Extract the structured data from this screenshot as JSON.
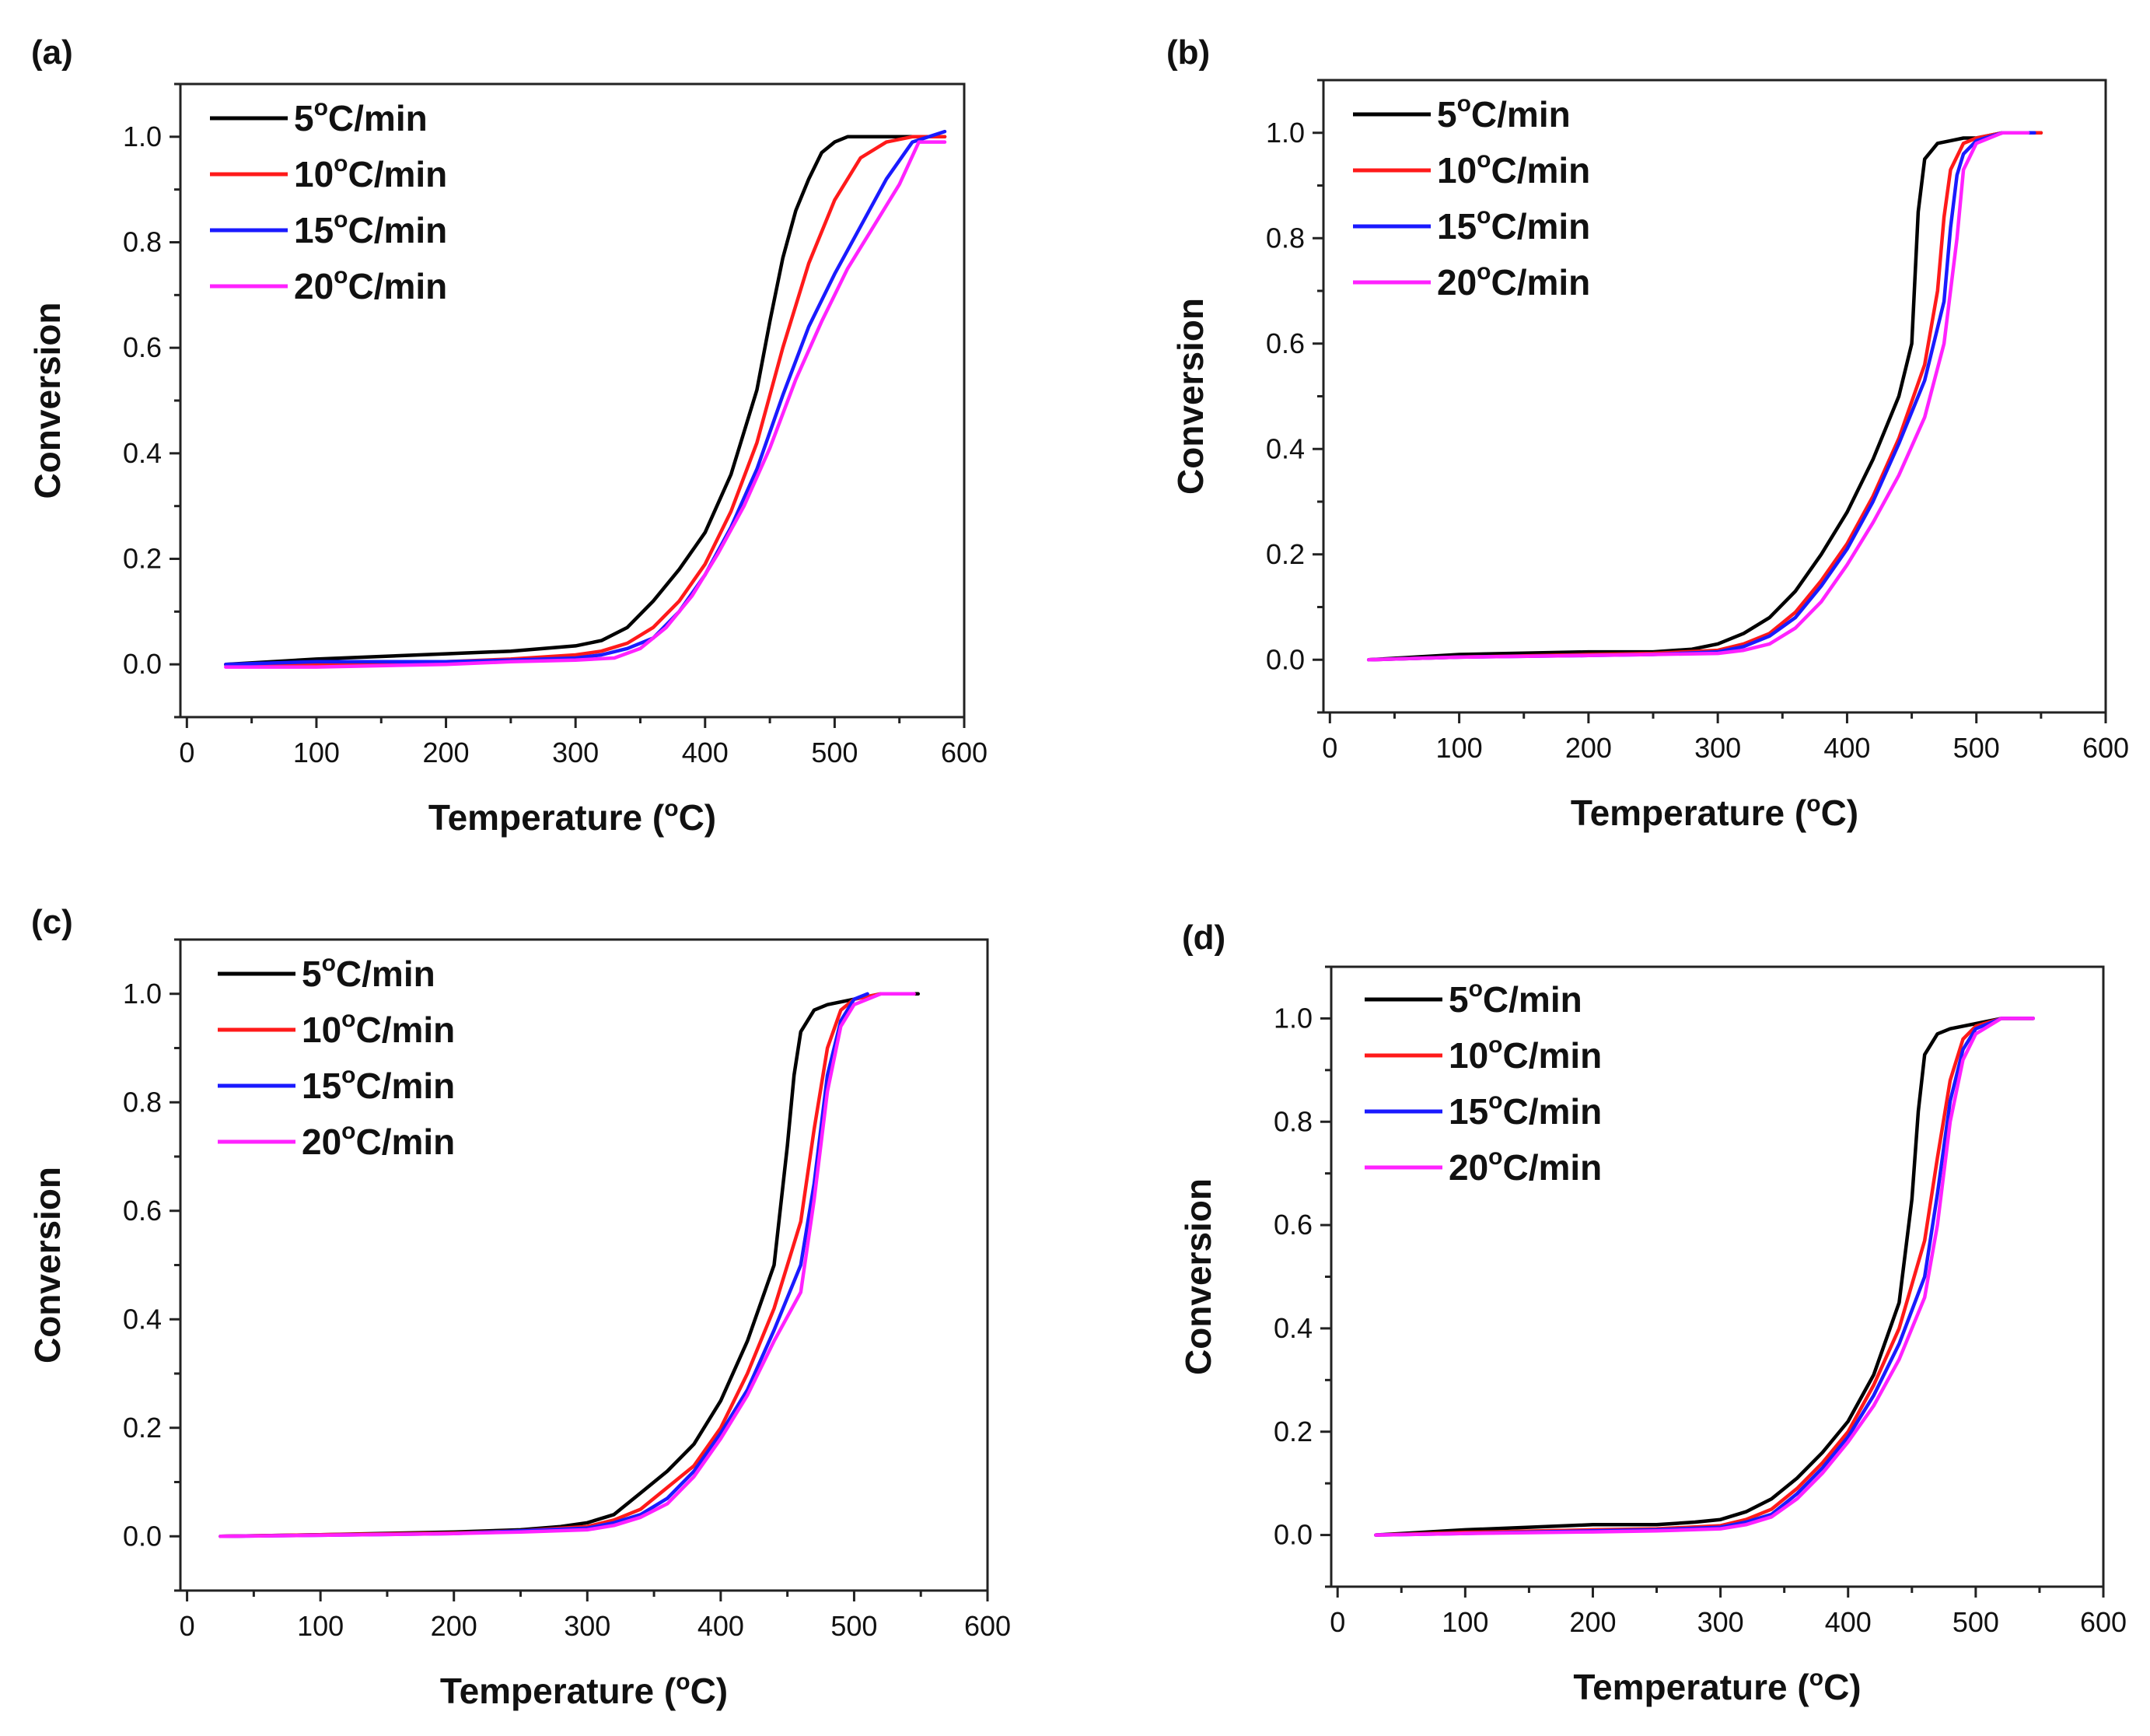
{
  "series_colors": [
    "#000000",
    "#ff1a1a",
    "#1a1aff",
    "#ff22ff"
  ],
  "chart_data": [
    {
      "type": "line",
      "panel_label": "(a)",
      "xlabel": "Temperature (",
      "xlabel_unit": "C)",
      "ylabel": "Conversion",
      "xlim": [
        -5,
        600
      ],
      "ylim": [
        -0.1,
        1.1
      ],
      "xticks": [
        "0",
        "100",
        "200",
        "300",
        "400",
        "500",
        "600"
      ],
      "yticks": [
        "0.0",
        "0.2",
        "0.4",
        "0.6",
        "0.8",
        "1.0"
      ],
      "legend": [
        "5",
        "10",
        "15",
        "20"
      ],
      "legend_unit": "C/min",
      "legend_sup": "o",
      "series": [
        {
          "name": "5°C/min",
          "x": [
            30,
            100,
            200,
            250,
            300,
            320,
            340,
            360,
            380,
            400,
            420,
            440,
            450,
            460,
            470,
            480,
            490,
            500,
            510,
            520,
            540,
            560,
            585
          ],
          "y": [
            0,
            0.01,
            0.02,
            0.025,
            0.035,
            0.045,
            0.07,
            0.12,
            0.18,
            0.25,
            0.36,
            0.52,
            0.65,
            0.77,
            0.86,
            0.92,
            0.97,
            0.99,
            1,
            1,
            1,
            1,
            1
          ]
        },
        {
          "name": "10°C/min",
          "x": [
            30,
            100,
            200,
            250,
            300,
            320,
            340,
            360,
            380,
            400,
            420,
            440,
            460,
            480,
            500,
            520,
            540,
            560,
            585
          ],
          "y": [
            0,
            0,
            0.005,
            0.01,
            0.018,
            0.025,
            0.04,
            0.07,
            0.12,
            0.19,
            0.29,
            0.42,
            0.6,
            0.76,
            0.88,
            0.96,
            0.99,
            1,
            1
          ]
        },
        {
          "name": "15°C/min",
          "x": [
            30,
            100,
            200,
            250,
            300,
            320,
            340,
            360,
            380,
            400,
            420,
            440,
            460,
            480,
            500,
            520,
            540,
            560,
            585
          ],
          "y": [
            0,
            0.005,
            0.005,
            0.008,
            0.012,
            0.018,
            0.03,
            0.05,
            0.1,
            0.17,
            0.26,
            0.37,
            0.51,
            0.64,
            0.74,
            0.83,
            0.92,
            0.99,
            1.01
          ]
        },
        {
          "name": "20°C/min",
          "x": [
            30,
            100,
            200,
            250,
            300,
            330,
            350,
            370,
            390,
            410,
            430,
            450,
            470,
            490,
            510,
            530,
            550,
            565,
            585
          ],
          "y": [
            -0.005,
            -0.005,
            0,
            0.005,
            0.008,
            0.012,
            0.03,
            0.07,
            0.13,
            0.21,
            0.3,
            0.41,
            0.54,
            0.65,
            0.75,
            0.83,
            0.91,
            0.99,
            0.99
          ]
        }
      ]
    },
    {
      "type": "line",
      "panel_label": "(b)",
      "xlabel": "Temperature (",
      "xlabel_unit": "C)",
      "ylabel": "Conversion",
      "xlim": [
        -5,
        600
      ],
      "ylim": [
        -0.1,
        1.1
      ],
      "xticks": [
        "0",
        "100",
        "200",
        "300",
        "400",
        "500",
        "600"
      ],
      "yticks": [
        "0.0",
        "0.2",
        "0.4",
        "0.6",
        "0.8",
        "1.0"
      ],
      "legend": [
        "5",
        "10",
        "15",
        "20"
      ],
      "legend_unit": "C/min",
      "legend_sup": "o",
      "series": [
        {
          "name": "5°C/min",
          "x": [
            30,
            100,
            200,
            250,
            280,
            300,
            320,
            340,
            360,
            380,
            400,
            420,
            440,
            450,
            455,
            460,
            470,
            480,
            490,
            500,
            520,
            550
          ],
          "y": [
            0,
            0.01,
            0.015,
            0.015,
            0.02,
            0.03,
            0.05,
            0.08,
            0.13,
            0.2,
            0.28,
            0.38,
            0.5,
            0.6,
            0.85,
            0.95,
            0.98,
            0.985,
            0.99,
            0.99,
            1,
            1
          ]
        },
        {
          "name": "10°C/min",
          "x": [
            30,
            100,
            200,
            250,
            300,
            320,
            340,
            360,
            380,
            400,
            420,
            440,
            460,
            470,
            475,
            480,
            490,
            500,
            520,
            550
          ],
          "y": [
            0,
            0.005,
            0.01,
            0.012,
            0.018,
            0.03,
            0.05,
            0.09,
            0.15,
            0.22,
            0.31,
            0.42,
            0.56,
            0.7,
            0.84,
            0.93,
            0.98,
            0.99,
            1,
            1
          ]
        },
        {
          "name": "15°C/min",
          "x": [
            30,
            100,
            200,
            250,
            300,
            320,
            340,
            360,
            380,
            400,
            420,
            440,
            460,
            475,
            480,
            485,
            490,
            500,
            520,
            545
          ],
          "y": [
            0,
            0.005,
            0.008,
            0.01,
            0.015,
            0.025,
            0.045,
            0.08,
            0.14,
            0.21,
            0.3,
            0.41,
            0.53,
            0.68,
            0.82,
            0.92,
            0.96,
            0.985,
            1,
            1
          ]
        },
        {
          "name": "20°C/min",
          "x": [
            30,
            100,
            200,
            250,
            300,
            320,
            340,
            360,
            380,
            400,
            420,
            440,
            460,
            475,
            485,
            490,
            500,
            520,
            540
          ],
          "y": [
            0,
            0.005,
            0.008,
            0.01,
            0.012,
            0.018,
            0.03,
            0.06,
            0.11,
            0.18,
            0.26,
            0.35,
            0.46,
            0.6,
            0.8,
            0.93,
            0.98,
            1,
            1
          ]
        }
      ]
    },
    {
      "type": "line",
      "panel_label": "(c)",
      "xlabel": "Temperature (",
      "xlabel_unit": "C)",
      "ylabel": "Conversion",
      "xlim": [
        -5,
        600
      ],
      "ylim": [
        -0.1,
        1.1
      ],
      "xticks": [
        "0",
        "100",
        "200",
        "300",
        "400",
        "500",
        "600"
      ],
      "yticks": [
        "0.0",
        "0.2",
        "0.4",
        "0.6",
        "0.8",
        "1.0"
      ],
      "legend": [
        "5",
        "10",
        "15",
        "20"
      ],
      "legend_unit": "C/min",
      "legend_sup": "o",
      "series": [
        {
          "name": "5°C/min",
          "x": [
            25,
            100,
            200,
            250,
            280,
            300,
            320,
            340,
            360,
            380,
            400,
            420,
            440,
            450,
            455,
            460,
            470,
            480,
            500,
            520,
            548
          ],
          "y": [
            0,
            0.003,
            0.008,
            0.012,
            0.018,
            0.025,
            0.04,
            0.08,
            0.12,
            0.17,
            0.25,
            0.36,
            0.5,
            0.72,
            0.85,
            0.93,
            0.97,
            0.98,
            0.99,
            1,
            1
          ]
        },
        {
          "name": "10°C/min",
          "x": [
            25,
            100,
            200,
            250,
            300,
            320,
            340,
            360,
            380,
            400,
            420,
            440,
            460,
            470,
            480,
            490,
            500,
            520,
            545
          ],
          "y": [
            0,
            0.003,
            0.006,
            0.01,
            0.018,
            0.03,
            0.05,
            0.09,
            0.13,
            0.2,
            0.3,
            0.42,
            0.58,
            0.75,
            0.9,
            0.97,
            0.99,
            1,
            1
          ]
        },
        {
          "name": "15°C/min",
          "x": [
            25,
            100,
            200,
            250,
            300,
            320,
            340,
            360,
            380,
            400,
            420,
            440,
            460,
            470,
            480,
            490,
            500,
            510
          ],
          "y": [
            0,
            0.002,
            0.005,
            0.01,
            0.015,
            0.025,
            0.04,
            0.07,
            0.12,
            0.19,
            0.27,
            0.38,
            0.5,
            0.65,
            0.85,
            0.95,
            0.99,
            1
          ]
        },
        {
          "name": "20°C/min",
          "x": [
            25,
            100,
            200,
            250,
            300,
            320,
            340,
            360,
            380,
            400,
            420,
            440,
            460,
            470,
            480,
            490,
            500,
            520,
            545
          ],
          "y": [
            0,
            0.002,
            0.005,
            0.008,
            0.012,
            0.02,
            0.035,
            0.06,
            0.11,
            0.18,
            0.26,
            0.36,
            0.45,
            0.62,
            0.82,
            0.94,
            0.98,
            1,
            1
          ]
        }
      ]
    },
    {
      "type": "line",
      "panel_label": "(d)",
      "xlabel": "Temperature (",
      "xlabel_unit": "C)",
      "ylabel": "Conversion",
      "xlim": [
        -5,
        600
      ],
      "ylim": [
        -0.1,
        1.1
      ],
      "xticks": [
        "0",
        "100",
        "200",
        "300",
        "400",
        "500",
        "600"
      ],
      "yticks": [
        "0.0",
        "0.2",
        "0.4",
        "0.6",
        "0.8",
        "1.0"
      ],
      "legend": [
        "5",
        "10",
        "15",
        "20"
      ],
      "legend_unit": "C/min",
      "legend_sup": "o",
      "series": [
        {
          "name": "5°C/min",
          "x": [
            30,
            100,
            150,
            200,
            250,
            280,
            300,
            320,
            340,
            360,
            380,
            400,
            420,
            440,
            450,
            455,
            460,
            470,
            480,
            500,
            520,
            545
          ],
          "y": [
            0,
            0.01,
            0.015,
            0.02,
            0.02,
            0.025,
            0.03,
            0.045,
            0.07,
            0.11,
            0.16,
            0.22,
            0.31,
            0.45,
            0.65,
            0.82,
            0.93,
            0.97,
            0.98,
            0.99,
            1,
            1
          ]
        },
        {
          "name": "10°C/min",
          "x": [
            30,
            100,
            200,
            250,
            300,
            320,
            340,
            360,
            380,
            400,
            420,
            440,
            460,
            470,
            480,
            490,
            500,
            520,
            545
          ],
          "y": [
            0,
            0.005,
            0.01,
            0.012,
            0.018,
            0.03,
            0.05,
            0.09,
            0.14,
            0.2,
            0.29,
            0.4,
            0.57,
            0.73,
            0.88,
            0.96,
            0.985,
            1,
            1
          ]
        },
        {
          "name": "15°C/min",
          "x": [
            30,
            100,
            200,
            250,
            300,
            320,
            340,
            360,
            380,
            400,
            420,
            440,
            460,
            470,
            480,
            490,
            500,
            520,
            545
          ],
          "y": [
            0,
            0.003,
            0.008,
            0.01,
            0.015,
            0.025,
            0.04,
            0.08,
            0.13,
            0.19,
            0.27,
            0.37,
            0.5,
            0.66,
            0.84,
            0.94,
            0.98,
            1,
            1
          ]
        },
        {
          "name": "20°C/min",
          "x": [
            30,
            100,
            200,
            250,
            300,
            320,
            340,
            360,
            380,
            400,
            420,
            440,
            460,
            470,
            480,
            490,
            500,
            520,
            545
          ],
          "y": [
            0,
            0.003,
            0.006,
            0.008,
            0.012,
            0.02,
            0.035,
            0.07,
            0.12,
            0.18,
            0.25,
            0.34,
            0.46,
            0.6,
            0.8,
            0.92,
            0.97,
            1,
            1
          ]
        }
      ]
    }
  ]
}
